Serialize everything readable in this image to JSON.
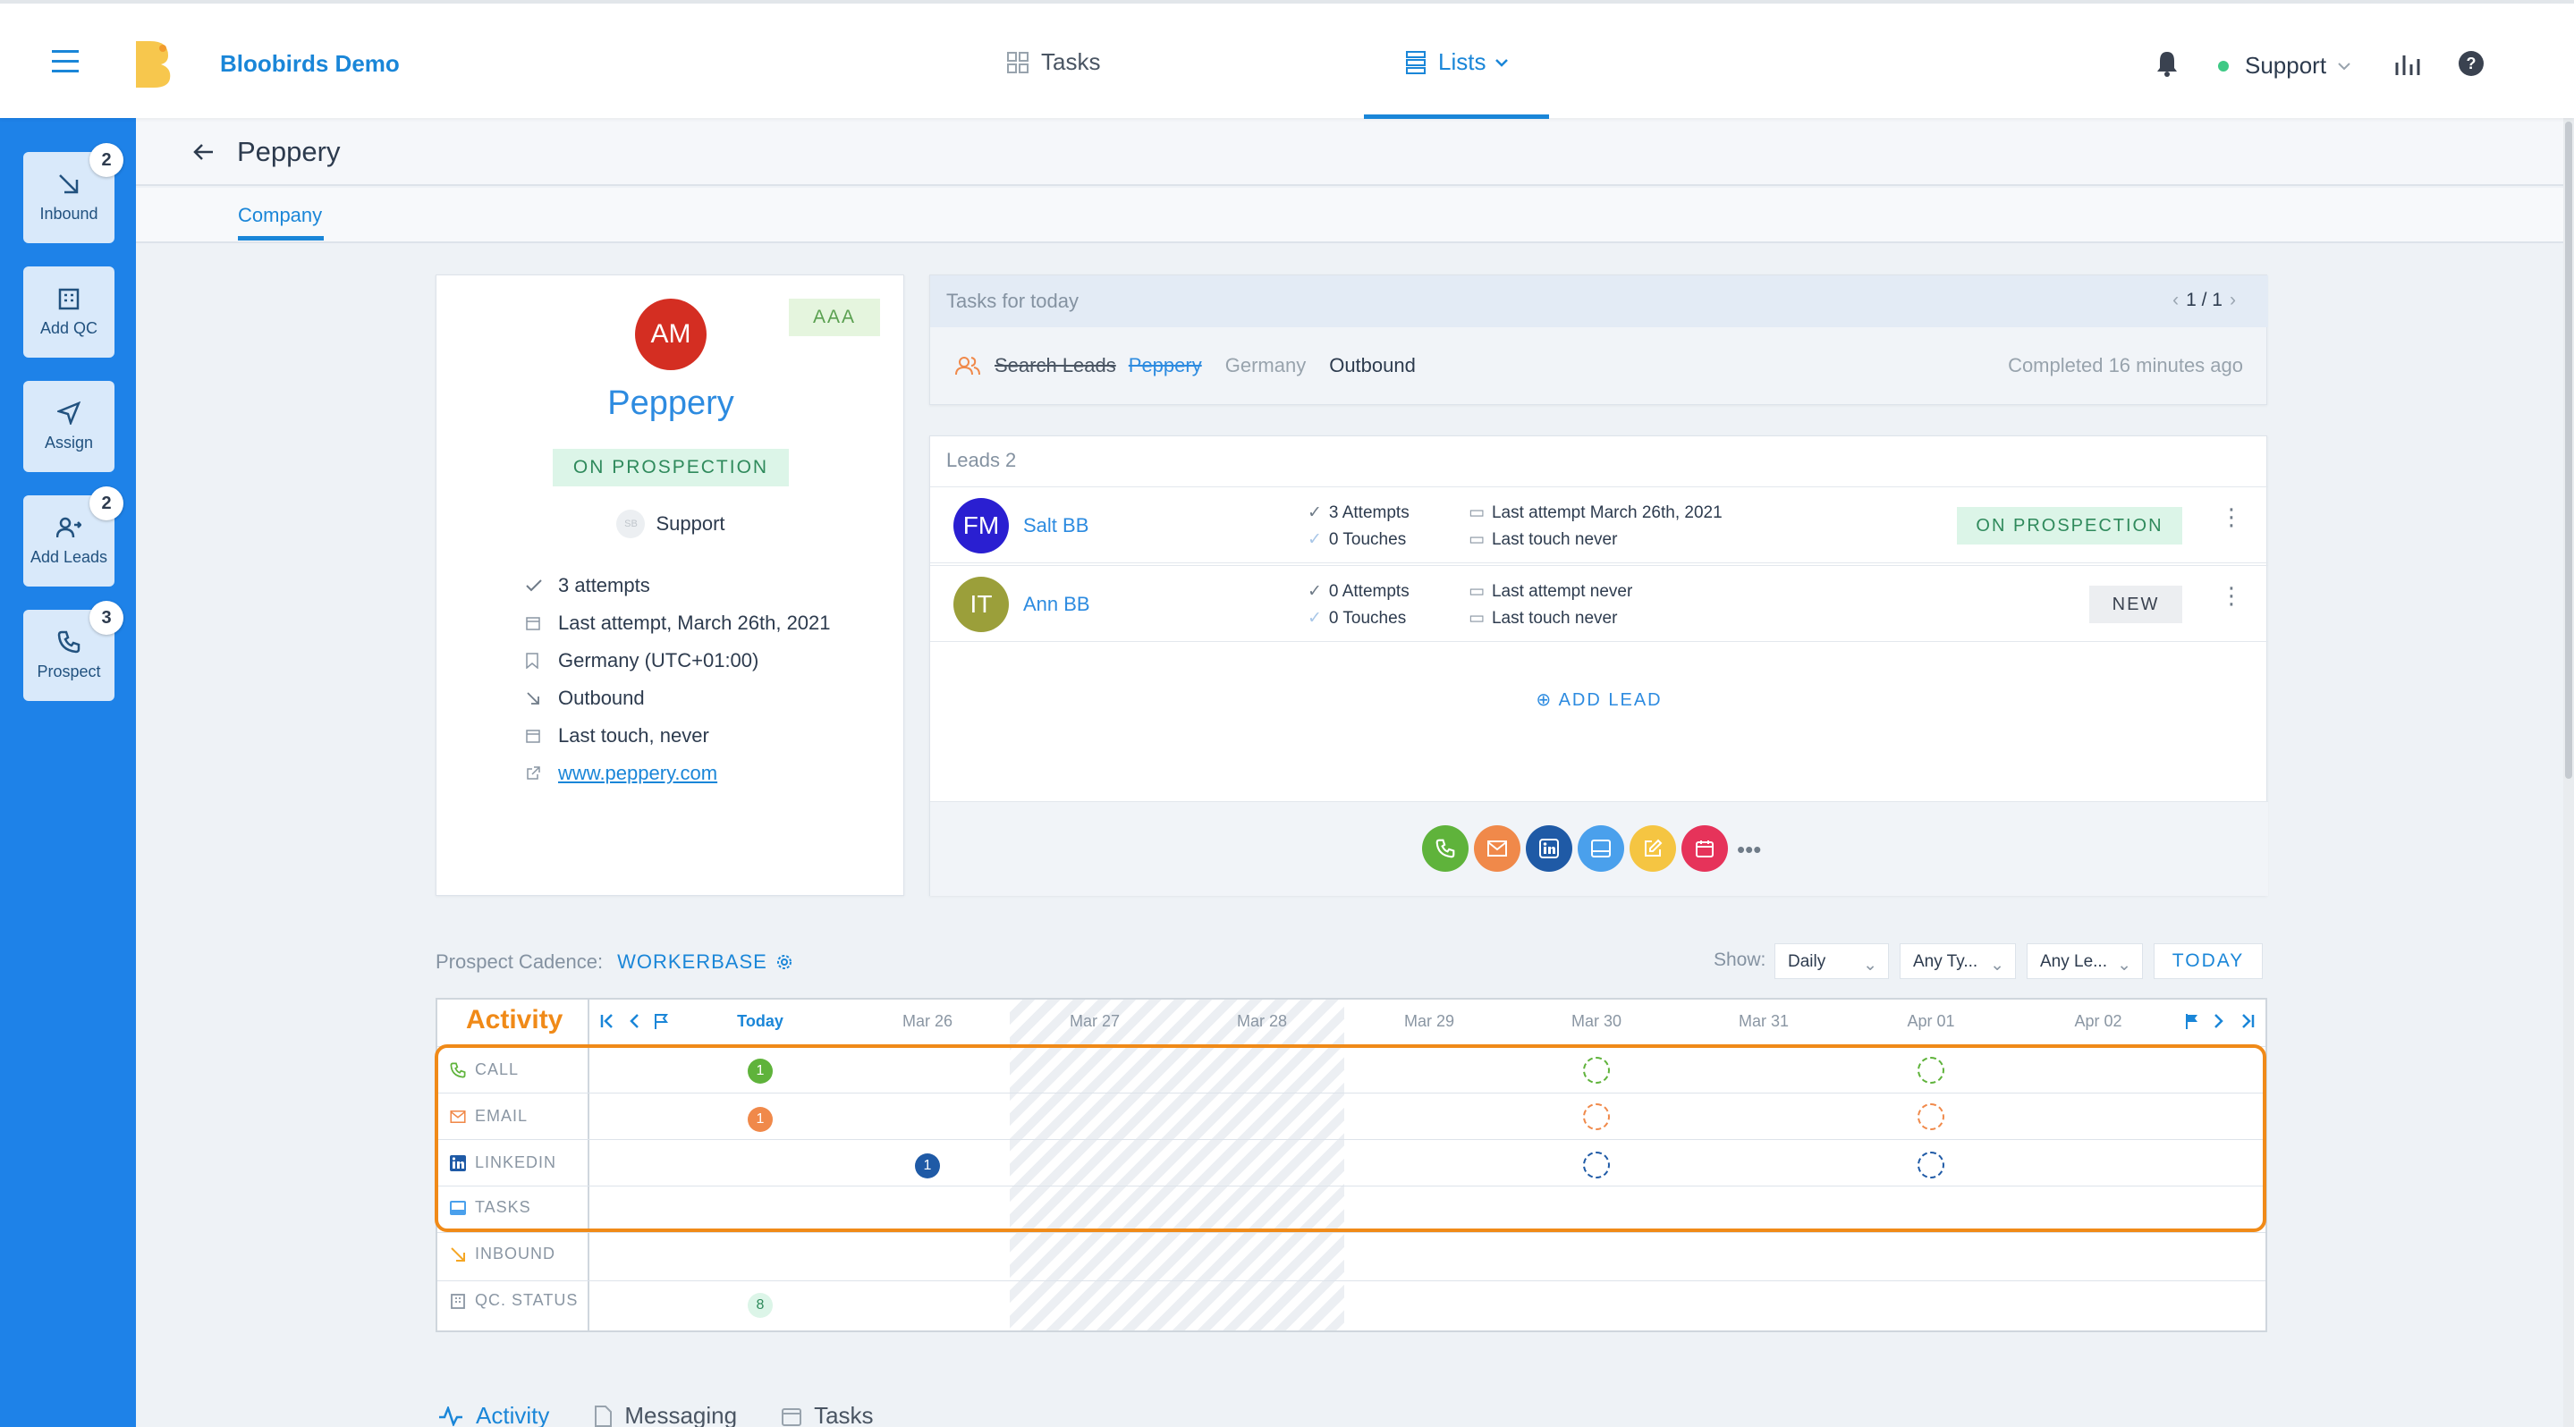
{
  "app": {
    "name": "Bloobirds Demo"
  },
  "nav": {
    "tasks": "Tasks",
    "lists": "Lists"
  },
  "user": {
    "name": "Support"
  },
  "sidebar": {
    "items": [
      {
        "label": "Inbound",
        "badge": "2",
        "icon": "arrow-down-right-icon"
      },
      {
        "label": "Add QC",
        "badge": "",
        "icon": "building-icon"
      },
      {
        "label": "Assign",
        "badge": "",
        "icon": "send-icon"
      },
      {
        "label": "Add Leads",
        "badge": "2",
        "icon": "add-user-icon"
      },
      {
        "label": "Prospect",
        "badge": "3",
        "icon": "phone-icon"
      }
    ]
  },
  "page": {
    "title": "Peppery",
    "tab": "Company"
  },
  "company": {
    "initials": "AM",
    "rating": "AAA",
    "name": "Peppery",
    "status": "ON PROSPECTION",
    "owner_initials": "SB",
    "owner": "Support",
    "attempts": "3 attempts",
    "last_attempt": "Last attempt, March 26th, 2021",
    "country": "Germany (UTC+01:00)",
    "source": "Outbound",
    "last_touch": "Last touch, never",
    "website": "www.peppery.com"
  },
  "tasks": {
    "header": "Tasks for today",
    "pager": "1 / 1",
    "task": {
      "title": "Search Leads",
      "company": "Peppery",
      "country": "Germany",
      "source": "Outbound",
      "completed": "Completed 16 minutes ago"
    }
  },
  "leads": {
    "header": "Leads 2",
    "rows": [
      {
        "initials": "FM",
        "name": "Salt BB",
        "attempts": "3 Attempts",
        "touches": "0 Touches",
        "last_attempt": "Last attempt March 26th, 2021",
        "last_touch": "Last touch never",
        "status": "ON PROSPECTION",
        "avatar_color": "#2a1fd1"
      },
      {
        "initials": "IT",
        "name": "Ann BB",
        "attempts": "0 Attempts",
        "touches": "0 Touches",
        "last_attempt": "Last attempt never",
        "last_touch": "Last touch never",
        "status": "NEW",
        "avatar_color": "#9b9f3a"
      }
    ],
    "add_label": "ADD LEAD",
    "actions": [
      {
        "icon": "phone-icon",
        "color": "#5fb33b"
      },
      {
        "icon": "mail-icon",
        "color": "#f0894a"
      },
      {
        "icon": "linkedin-icon",
        "color": "#1f5aa6"
      },
      {
        "icon": "task-icon",
        "color": "#4aa0ec"
      },
      {
        "icon": "note-icon",
        "color": "#f5c542"
      },
      {
        "icon": "calendar-icon",
        "color": "#e6335a"
      }
    ],
    "more": "•••"
  },
  "cadence": {
    "label": "Prospect Cadence:",
    "name": "WORKERBASE",
    "show_label": "Show:",
    "filters": [
      "Daily",
      "Any Ty...",
      "Any Le..."
    ],
    "today_button": "TODAY",
    "activity_label": "Activity",
    "dates": [
      "Today",
      "Mar 26",
      "Mar 27",
      "Mar 28",
      "Mar 29",
      "Mar 30",
      "Mar 31",
      "Apr 01",
      "Apr 02"
    ],
    "rows": [
      "CALL",
      "EMAIL",
      "LINKEDIN",
      "TASKS",
      "INBOUND",
      "QC. STATUS"
    ],
    "counts": {
      "call_today": "1",
      "email_today": "1",
      "linkedin_mar26": "1",
      "qc_today": "8"
    },
    "colors": {
      "call": "#5fb33b",
      "email": "#f0894a",
      "linkedin": "#1f5aa6",
      "qc": "#dcf5e8",
      "highlight": "#f08a18"
    }
  },
  "bottom_tabs": [
    "Activity",
    "Messaging",
    "Tasks"
  ]
}
